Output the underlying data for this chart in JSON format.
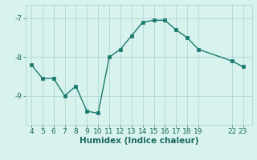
{
  "x": [
    4,
    5,
    6,
    7,
    8,
    9,
    10,
    11,
    12,
    13,
    14,
    15,
    16,
    17,
    18,
    19,
    22,
    23
  ],
  "y": [
    -8.2,
    -8.55,
    -8.55,
    -9.0,
    -8.75,
    -9.4,
    -9.45,
    -8.0,
    -7.8,
    -7.45,
    -7.1,
    -7.05,
    -7.05,
    -7.3,
    -7.5,
    -7.8,
    -8.1,
    -8.25
  ],
  "line_color": "#1a7a6e",
  "marker_color": "#1a7a6e",
  "bg_color": "#d8f2ee",
  "grid_color": "#b0d8d2",
  "xlabel": "Humidex (Indice chaleur)",
  "xlim": [
    3.5,
    23.8
  ],
  "ylim": [
    -9.75,
    -6.65
  ],
  "xticks": [
    4,
    5,
    6,
    7,
    8,
    9,
    10,
    11,
    12,
    13,
    14,
    15,
    16,
    17,
    18,
    19,
    22,
    23
  ],
  "yticks": [
    -9,
    -8,
    -7
  ],
  "font_color": "#1a6a5e",
  "tick_fontsize": 6.5,
  "label_fontsize": 7.5
}
